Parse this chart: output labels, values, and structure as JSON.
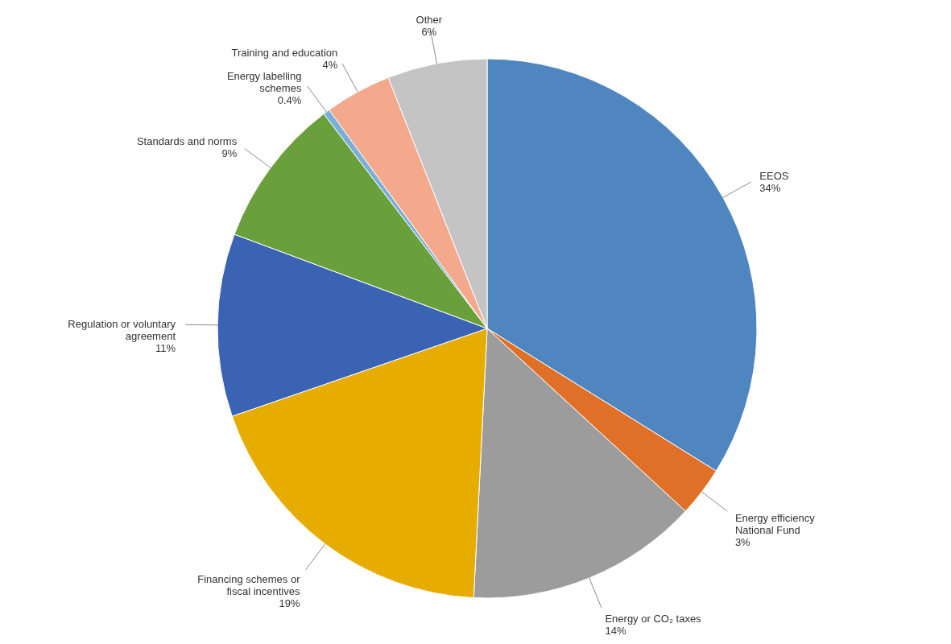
{
  "chart_data": {
    "type": "pie",
    "categories": [
      "EEOS",
      "Energy efficiency National Fund",
      "Energy or CO₂ taxes",
      "Financing schemes or fiscal incentives",
      "Regulation or voluntary agreement",
      "Standards and norms",
      "Energy labelling schemes",
      "Training and education",
      "Other"
    ],
    "values": [
      34,
      3,
      14,
      19,
      11,
      9,
      0.4,
      4,
      6
    ],
    "value_labels": [
      "34%",
      "3%",
      "14%",
      "19%",
      "11%",
      "9%",
      "0.4%",
      "4%",
      "6%"
    ],
    "colors": [
      "#4f86c0",
      "#e07028",
      "#9c9c9c",
      "#e6ac00",
      "#3a63b4",
      "#6aa03c",
      "#7ab0d8",
      "#f4a88c",
      "#c4c4c4"
    ]
  }
}
